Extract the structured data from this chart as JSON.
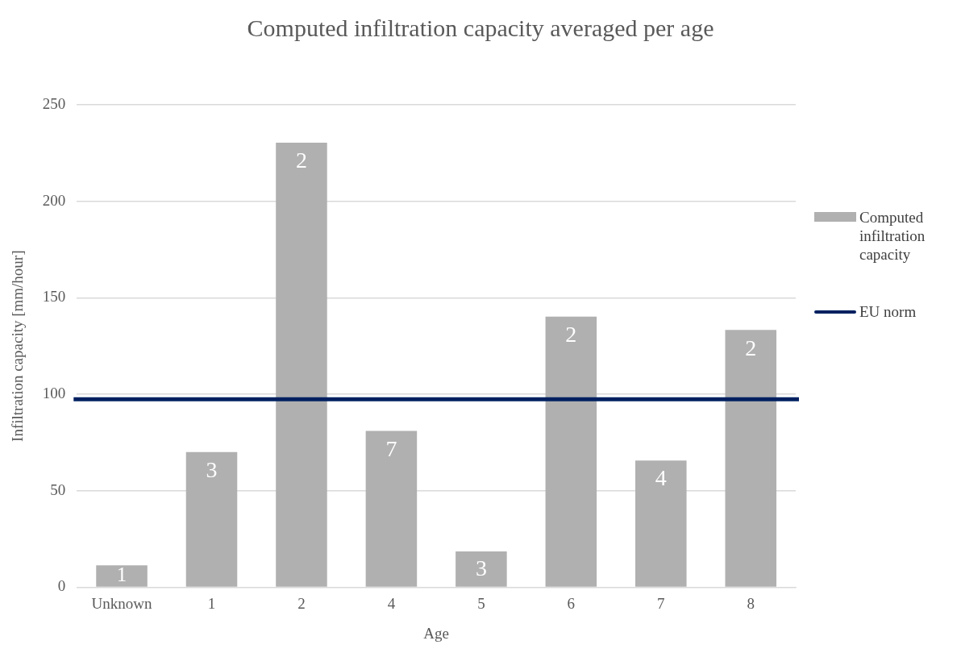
{
  "chart_data": {
    "type": "bar",
    "title": "Computed infiltration capacity averaged per age",
    "xlabel": "Age",
    "ylabel": "Infiltration capacity [mm/hour]",
    "categories": [
      "Unknown",
      "1",
      "2",
      "4",
      "5",
      "6",
      "7",
      "8"
    ],
    "series": [
      {
        "name": "Computed infiltration capacity",
        "color": "#b0b0b0",
        "values": [
          11.3,
          70,
          230.4,
          81,
          18.5,
          140.2,
          65.7,
          133.3
        ]
      }
    ],
    "annotations": [
      {
        "text": "1",
        "x": "Unknown",
        "y": 11.3
      },
      {
        "text": "3",
        "x": "1",
        "y": 70
      },
      {
        "text": "2",
        "x": "2",
        "y": 230.4
      },
      {
        "text": "7",
        "x": "4",
        "y": 81
      },
      {
        "text": "3",
        "x": "5",
        "y": 18.5
      },
      {
        "text": "2",
        "x": "6",
        "y": 140.2
      },
      {
        "text": "4",
        "x": "7",
        "y": 65.7
      },
      {
        "text": "2",
        "x": "8",
        "y": 133.3
      }
    ],
    "ref_lines": [
      {
        "axis": "y",
        "value": 97.4,
        "label": "EU norm",
        "color": "#002060"
      }
    ],
    "ylim": [
      0,
      250
    ],
    "yticks": [
      0,
      50,
      100,
      150,
      200,
      250
    ],
    "grid": "y",
    "legend": "right"
  }
}
